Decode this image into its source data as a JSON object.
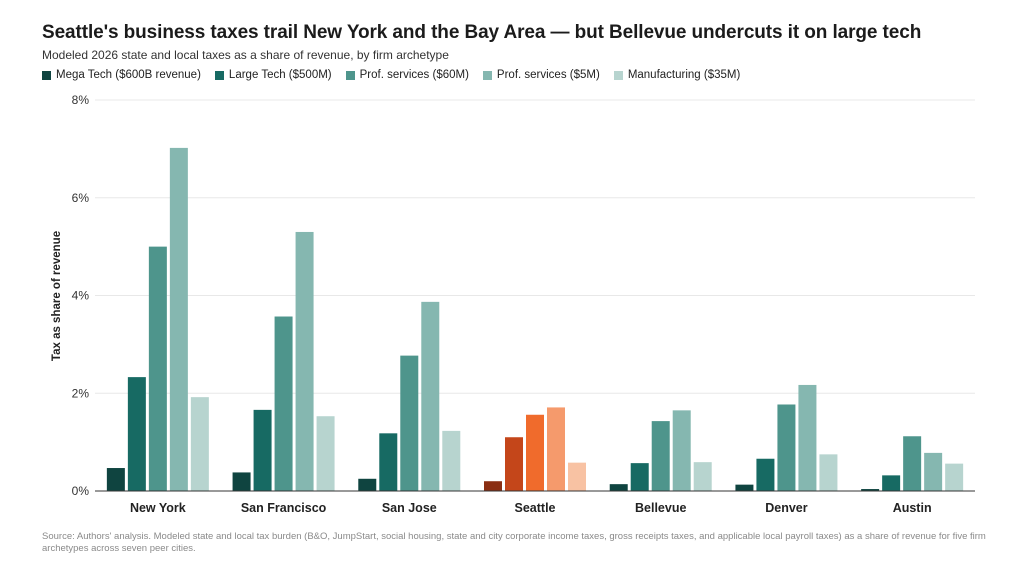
{
  "title": "Seattle's business taxes trail New York and the Bay Area — but Bellevue undercuts it on large tech",
  "subtitle": "Modeled 2026 state and local taxes as a share of revenue, by firm archetype",
  "footnote": "Source: Authors' analysis. Modeled state and local tax burden (B&O, JumpStart, social housing, state and city corporate income taxes, gross receipts taxes, and applicable local payroll taxes) as a share of revenue for five firm archetypes across seven peer cities.",
  "colors": {
    "series": [
      "#0f4440",
      "#176a63",
      "#4e958c",
      "#85b7b0",
      "#b7d4cf"
    ],
    "highlight": [
      "#8a2e12",
      "#c4461a",
      "#f06b2c",
      "#f59a6c",
      "#f8c2a3"
    ],
    "grid": "#e8e8e8",
    "axis": "#333333"
  },
  "chart_data": {
    "type": "bar",
    "title": "Seattle's business taxes trail New York and the Bay Area — but Bellevue undercuts it on large tech",
    "subtitle": "Modeled 2026 state and local taxes as a share of revenue, by firm archetype",
    "ylabel": "Tax as share of revenue",
    "xlabel": "",
    "ylim": [
      0,
      8
    ],
    "yticks": [
      0,
      2,
      4,
      6,
      8
    ],
    "ytick_labels": [
      "0%",
      "2%",
      "4%",
      "6%",
      "8%"
    ],
    "grid": true,
    "legend_position": "top-left",
    "highlight_category": "Seattle",
    "categories": [
      "New York",
      "San Francisco",
      "San Jose",
      "Seattle",
      "Bellevue",
      "Denver",
      "Austin"
    ],
    "series": [
      {
        "name": "Mega Tech ($600B revenue)",
        "values": [
          0.47,
          0.38,
          0.25,
          0.2,
          0.14,
          0.13,
          0.04
        ]
      },
      {
        "name": "Large Tech ($500M)",
        "values": [
          2.33,
          1.66,
          1.18,
          1.1,
          0.57,
          0.66,
          0.32
        ]
      },
      {
        "name": "Prof. services ($60M)",
        "values": [
          5.0,
          3.57,
          2.77,
          1.56,
          1.43,
          1.77,
          1.12
        ]
      },
      {
        "name": "Prof. services ($5M)",
        "values": [
          7.02,
          5.3,
          3.87,
          1.71,
          1.65,
          2.17,
          0.78
        ]
      },
      {
        "name": "Manufacturing ($35M)",
        "values": [
          1.92,
          1.53,
          1.23,
          0.58,
          0.59,
          0.75,
          0.56
        ]
      }
    ]
  }
}
